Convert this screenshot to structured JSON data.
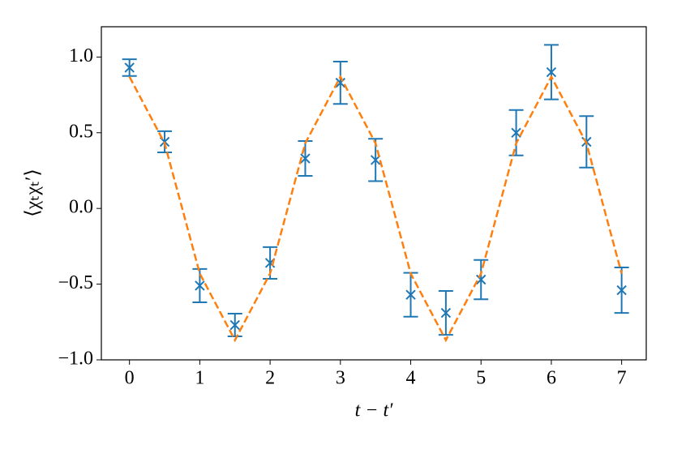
{
  "chart_data": {
    "type": "errorbar",
    "x_label": "t − t′",
    "y_label": "⟨χₜχₜ′⟩",
    "x": [
      0,
      0.5,
      1,
      1.5,
      2,
      2.5,
      3,
      3.5,
      4,
      4.5,
      5,
      5.5,
      6,
      6.5,
      7
    ],
    "series": [
      {
        "color": "#1f77b4",
        "marker": "x",
        "values": [
          0.93,
          0.44,
          -0.51,
          -0.77,
          -0.36,
          0.33,
          0.83,
          0.32,
          -0.57,
          -0.69,
          -0.47,
          0.5,
          0.9,
          0.44,
          -0.54
        ],
        "errors": [
          0.055,
          0.07,
          0.11,
          0.075,
          0.105,
          0.115,
          0.14,
          0.14,
          0.145,
          0.145,
          0.13,
          0.15,
          0.18,
          0.17,
          0.15
        ]
      },
      {
        "color": "#ff7f0e",
        "style": "dashed",
        "values": [
          0.87,
          0.43,
          -0.43,
          -0.87,
          -0.43,
          0.43,
          0.87,
          0.43,
          -0.43,
          -0.87,
          -0.43,
          0.43,
          0.87,
          0.43,
          -0.43
        ]
      }
    ],
    "xlim": [
      -0.4,
      7.35
    ],
    "ylim": [
      -1.0,
      1.2
    ],
    "xticks": [
      0,
      1,
      2,
      3,
      4,
      5,
      6,
      7
    ],
    "yticks": [
      {
        "value": -1.0,
        "label": "−1.0"
      },
      {
        "value": -0.5,
        "label": "−0.5"
      },
      {
        "value": 0,
        "label": "0.0"
      },
      {
        "value": 0.5,
        "label": "0.5"
      },
      {
        "value": 1.0,
        "label": "1.0"
      }
    ]
  }
}
